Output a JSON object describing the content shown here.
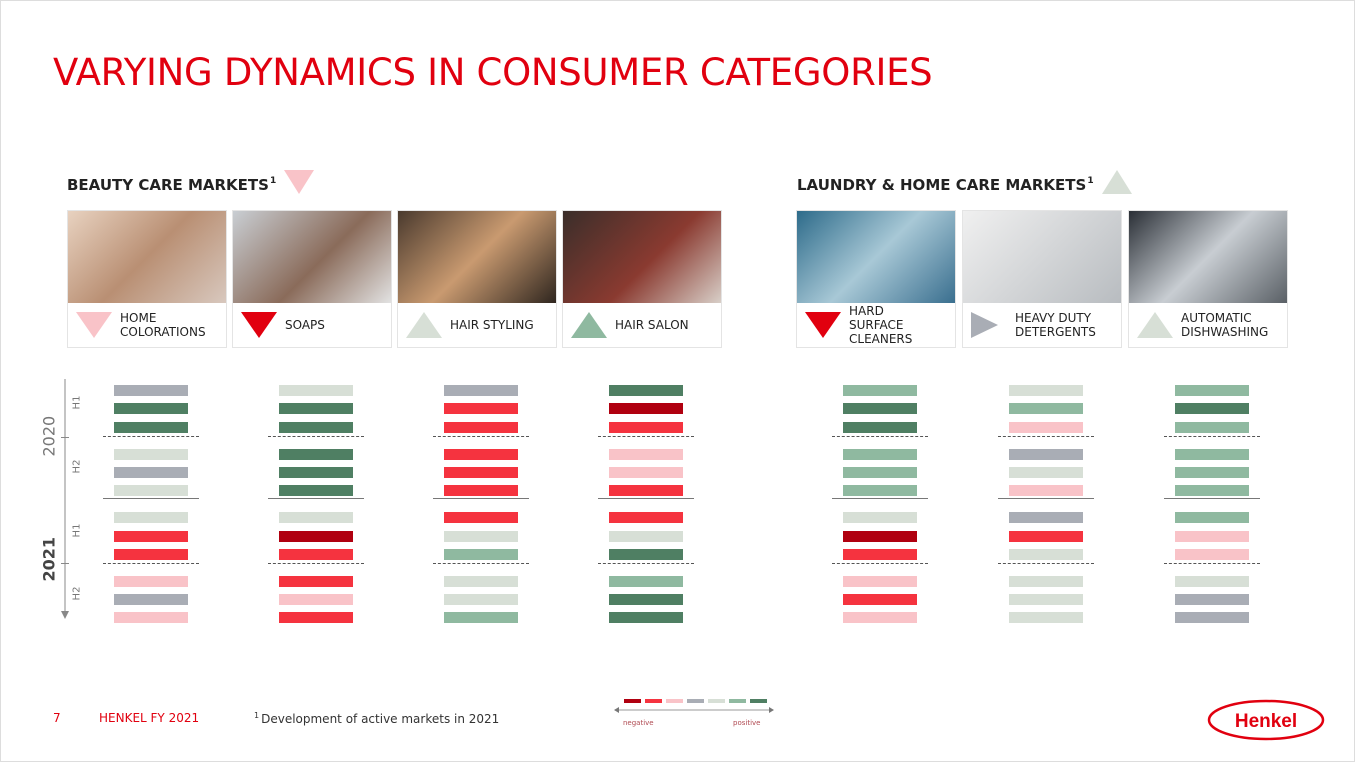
{
  "title": "VARYING DYNAMICS IN CONSUMER CATEGORIES",
  "sections": [
    {
      "title": "BEAUTY CARE MARKETS",
      "footnote_mark": "1",
      "trend": {
        "direction": "down",
        "color": "#f9c3c8"
      },
      "categories": [
        {
          "label": "HOME COLORATIONS",
          "trend": {
            "direction": "down",
            "color": "#f9c3c8"
          },
          "bars": [
            "#a9adb5",
            "#4f7f63",
            "#4f7f63",
            "#d7dfd6",
            "#a9adb5",
            "#d7dfd6",
            "#d7dfd6",
            "#f5333f",
            "#f5333f",
            "#f9c3c8",
            "#a9adb5",
            "#f9c3c8"
          ]
        },
        {
          "label": "SOAPS",
          "trend": {
            "direction": "down",
            "color": "#e1000f"
          },
          "bars": [
            "#d7dfd6",
            "#4f7f63",
            "#4f7f63",
            "#4f7f63",
            "#4f7f63",
            "#4f7f63",
            "#d7dfd6",
            "#b00010",
            "#f5333f",
            "#f5333f",
            "#f9c3c8",
            "#f5333f"
          ]
        },
        {
          "label": "HAIR STYLING",
          "trend": {
            "direction": "up",
            "color": "#d7dfd6"
          },
          "bars": [
            "#a9adb5",
            "#f5333f",
            "#f5333f",
            "#f5333f",
            "#f5333f",
            "#f5333f",
            "#f5333f",
            "#d7dfd6",
            "#8fb9a0",
            "#d7dfd6",
            "#d7dfd6",
            "#8fb9a0"
          ]
        },
        {
          "label": "HAIR SALON",
          "trend": {
            "direction": "up",
            "color": "#8fb9a0"
          },
          "bars": [
            "#4f7f63",
            "#b00010",
            "#f5333f",
            "#f9c3c8",
            "#f9c3c8",
            "#f5333f",
            "#f5333f",
            "#d7dfd6",
            "#4f7f63",
            "#8fb9a0",
            "#4f7f63",
            "#4f7f63"
          ]
        }
      ]
    },
    {
      "title": "LAUNDRY & HOME CARE MARKETS",
      "footnote_mark": "1",
      "trend": {
        "direction": "up",
        "color": "#d7dfd6"
      },
      "categories": [
        {
          "label": "HARD SURFACE CLEANERS",
          "trend": {
            "direction": "down",
            "color": "#e1000f"
          },
          "bars": [
            "#8fb9a0",
            "#4f7f63",
            "#4f7f63",
            "#8fb9a0",
            "#8fb9a0",
            "#8fb9a0",
            "#d7dfd6",
            "#b00010",
            "#f5333f",
            "#f9c3c8",
            "#f5333f",
            "#f9c3c8"
          ]
        },
        {
          "label": "HEAVY DUTY DETERGENTS",
          "trend": {
            "direction": "right",
            "color": "#a9adb5"
          },
          "bars": [
            "#d7dfd6",
            "#8fb9a0",
            "#f9c3c8",
            "#a9adb5",
            "#d7dfd6",
            "#f9c3c8",
            "#a9adb5",
            "#f5333f",
            "#d7dfd6",
            "#d7dfd6",
            "#d7dfd6",
            "#d7dfd6"
          ]
        },
        {
          "label": "AUTOMATIC DISHWASHING",
          "trend": {
            "direction": "up",
            "color": "#d7dfd6"
          },
          "bars": [
            "#8fb9a0",
            "#4f7f63",
            "#8fb9a0",
            "#8fb9a0",
            "#8fb9a0",
            "#8fb9a0",
            "#8fb9a0",
            "#f9c3c8",
            "#f9c3c8",
            "#d7dfd6",
            "#a9adb5",
            "#a9adb5"
          ]
        }
      ]
    }
  ],
  "timeline": {
    "years": [
      "2020",
      "2021"
    ],
    "halves": [
      "H1",
      "H2"
    ]
  },
  "legend": {
    "colors": [
      "#b00010",
      "#f5333f",
      "#f9c3c8",
      "#a9adb5",
      "#d7dfd6",
      "#8fb9a0",
      "#4f7f63"
    ],
    "negative": "negative",
    "positive": "positive"
  },
  "footer": {
    "page": "7",
    "company": "HENKEL FY 2021",
    "footnote_mark": "1",
    "footnote": "Development of active markets in 2021",
    "logo": "Henkel"
  }
}
